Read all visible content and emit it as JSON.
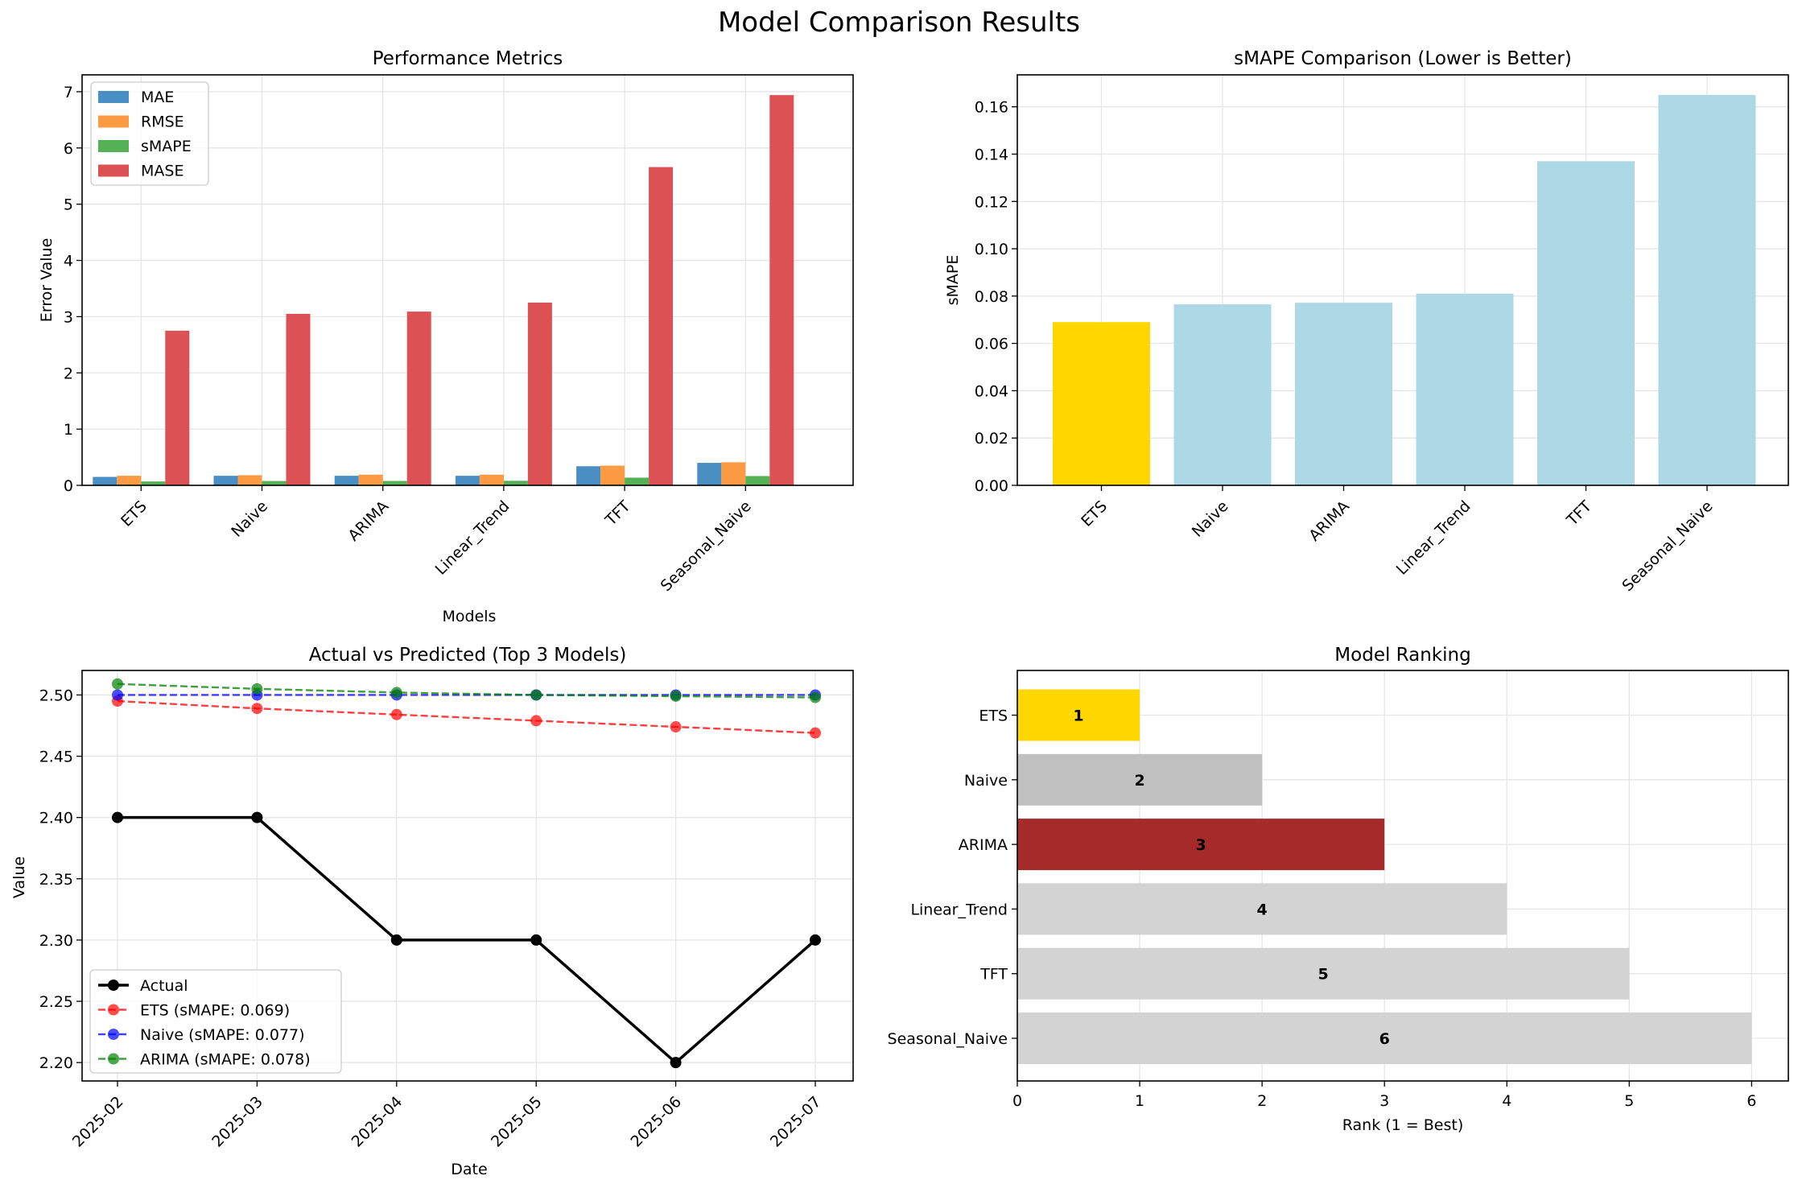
{
  "figure": {
    "suptitle": "Model Comparison Results"
  },
  "chart_data": [
    {
      "type": "bar",
      "title": "Performance Metrics",
      "xlabel": "Models",
      "ylabel": "Error Value",
      "ylim": [
        0,
        7.3
      ],
      "yticks": [
        0,
        1,
        2,
        3,
        4,
        5,
        6,
        7
      ],
      "grid": true,
      "legend_position": "upper-left",
      "categories": [
        "ETS",
        "Naive",
        "ARIMA",
        "Linear_Trend",
        "TFT",
        "Seasonal_Naive"
      ],
      "series": [
        {
          "name": "MAE",
          "color": "#4a8fc4",
          "values": [
            0.15,
            0.17,
            0.17,
            0.17,
            0.34,
            0.4
          ]
        },
        {
          "name": "RMSE",
          "color": "#fd9a44",
          "values": [
            0.17,
            0.18,
            0.19,
            0.19,
            0.35,
            0.41
          ]
        },
        {
          "name": "sMAPE",
          "color": "#55b155",
          "values": [
            0.069,
            0.077,
            0.078,
            0.081,
            0.137,
            0.165
          ]
        },
        {
          "name": "MASE",
          "color": "#dc5254",
          "values": [
            2.75,
            3.05,
            3.09,
            3.25,
            5.66,
            6.94
          ]
        }
      ]
    },
    {
      "type": "bar",
      "title": "sMAPE Comparison (Lower is Better)",
      "xlabel": "",
      "ylabel": "sMAPE",
      "ylim": [
        0,
        0.1735
      ],
      "yticks": [
        0.0,
        0.02,
        0.04,
        0.06,
        0.08,
        0.1,
        0.12,
        0.14,
        0.16
      ],
      "grid": true,
      "categories": [
        "ETS",
        "Naive",
        "ARIMA",
        "Linear_Trend",
        "TFT",
        "Seasonal_Naive"
      ],
      "values": [
        0.069,
        0.0765,
        0.0772,
        0.081,
        0.137,
        0.165
      ],
      "colors": [
        "#ffd700",
        "#add8e6",
        "#add8e6",
        "#add8e6",
        "#add8e6",
        "#add8e6"
      ]
    },
    {
      "type": "line",
      "title": "Actual vs Predicted (Top 3 Models)",
      "xlabel": "Date",
      "ylabel": "Value",
      "ylim": [
        2.185,
        2.52
      ],
      "yticks": [
        2.2,
        2.25,
        2.3,
        2.35,
        2.4,
        2.45,
        2.5
      ],
      "grid": true,
      "legend_position": "lower-left",
      "x": [
        "2025-02",
        "2025-03",
        "2025-04",
        "2025-05",
        "2025-06",
        "2025-07"
      ],
      "series": [
        {
          "name": "Actual",
          "color": "#000000",
          "style": "solid",
          "values": [
            2.4,
            2.4,
            2.3,
            2.3,
            2.2,
            2.3
          ]
        },
        {
          "name": "ETS (sMAPE: 0.069)",
          "color": "#ff0000",
          "style": "dashed",
          "values": [
            2.495,
            2.489,
            2.484,
            2.479,
            2.474,
            2.469
          ]
        },
        {
          "name": "Naive (sMAPE: 0.077)",
          "color": "#0000ff",
          "style": "dashed",
          "values": [
            2.5,
            2.5,
            2.5,
            2.5,
            2.5,
            2.5
          ]
        },
        {
          "name": "ARIMA (sMAPE: 0.078)",
          "color": "#008000",
          "style": "dashed",
          "values": [
            2.509,
            2.505,
            2.502,
            2.5,
            2.499,
            2.498
          ]
        }
      ]
    },
    {
      "type": "bar",
      "orientation": "horizontal",
      "title": "Model Ranking",
      "xlabel": "Rank (1 = Best)",
      "ylabel": "",
      "xlim": [
        0,
        6.3
      ],
      "xticks": [
        0,
        1,
        2,
        3,
        4,
        5,
        6
      ],
      "grid": true,
      "categories": [
        "ETS",
        "Naive",
        "ARIMA",
        "Linear_Trend",
        "TFT",
        "Seasonal_Naive"
      ],
      "values": [
        1,
        2,
        3,
        4,
        5,
        6
      ],
      "labels": [
        "1",
        "2",
        "3",
        "4",
        "5",
        "6"
      ],
      "colors": [
        "#ffd700",
        "#c0c0c0",
        "#a52a2a",
        "#d3d3d3",
        "#d3d3d3",
        "#d3d3d3"
      ]
    }
  ]
}
